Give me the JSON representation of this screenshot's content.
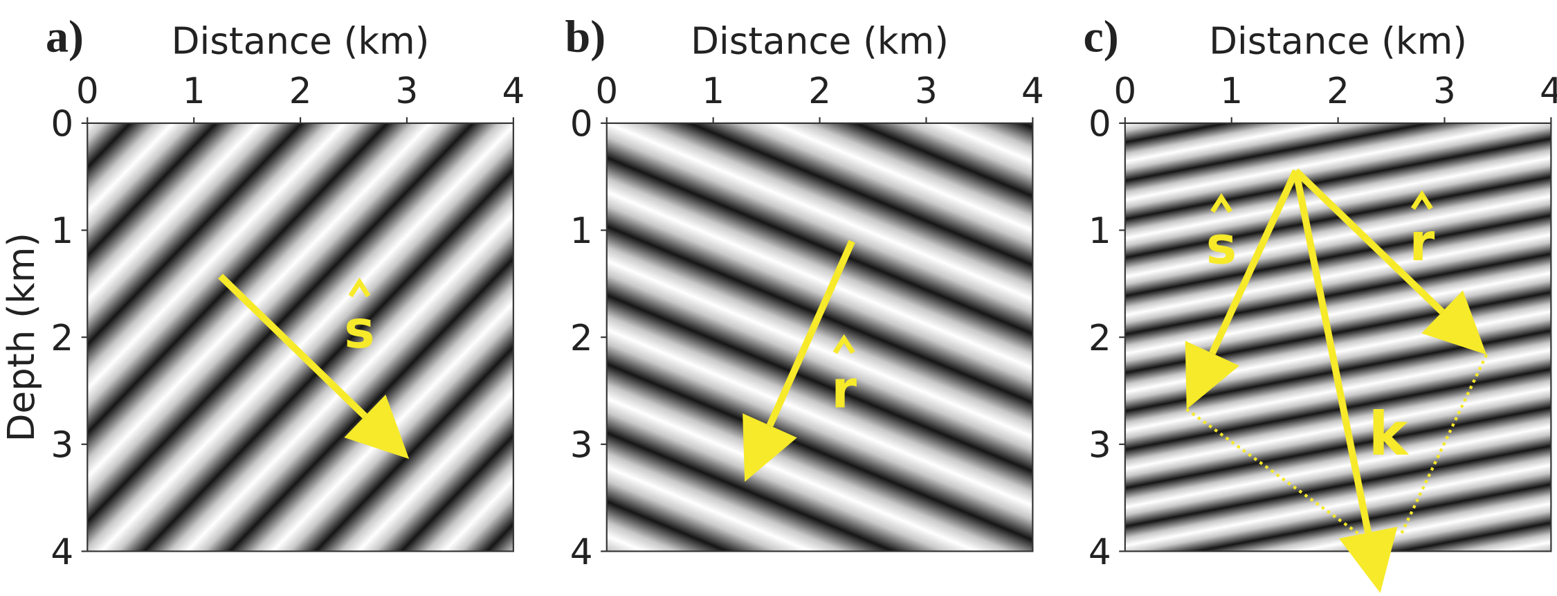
{
  "panels": [
    {
      "label": "a)",
      "x_label": "Distance (km)",
      "y_label": "Depth (km)",
      "x_ticks": [
        "0",
        "1",
        "2",
        "3",
        "4"
      ],
      "y_ticks": [
        "0",
        "1",
        "2",
        "3",
        "4"
      ],
      "vectors": [
        "s"
      ]
    },
    {
      "label": "b)",
      "x_label": "Distance (km)",
      "x_ticks": [
        "0",
        "1",
        "2",
        "3",
        "4"
      ],
      "y_ticks": [
        "0",
        "1",
        "2",
        "3",
        "4"
      ],
      "vectors": [
        "r"
      ]
    },
    {
      "label": "c)",
      "x_label": "Distance (km)",
      "x_ticks": [
        "0",
        "1",
        "2",
        "3",
        "4"
      ],
      "y_ticks": [
        "0",
        "1",
        "2",
        "3",
        "4"
      ],
      "vectors": [
        "s",
        "r",
        "k"
      ]
    }
  ]
}
